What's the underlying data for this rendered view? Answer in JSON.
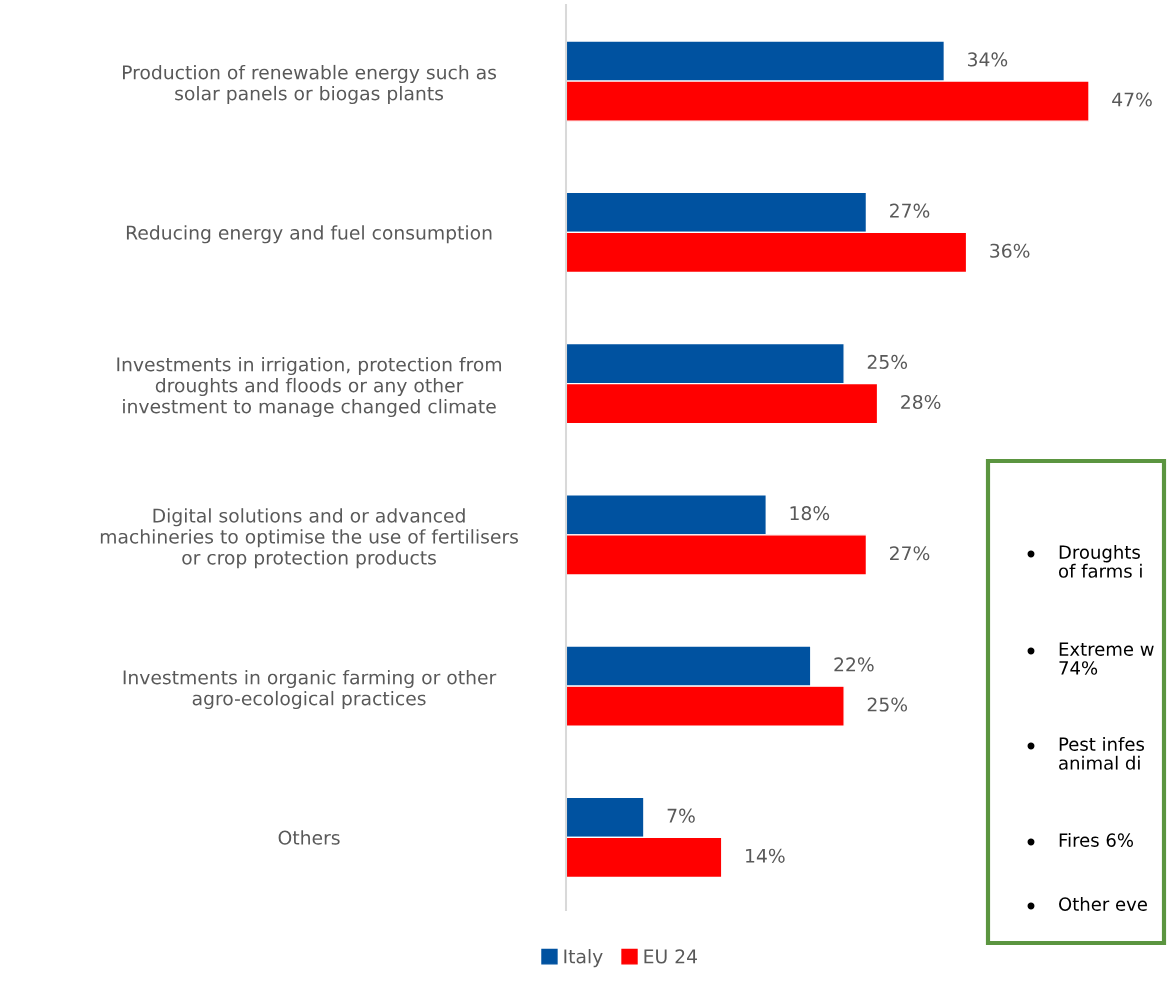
{
  "chart_data": {
    "type": "bar",
    "orientation": "horizontal",
    "categories": [
      "Production of renewable energy such as\nsolar panels or biogas plants",
      "Reducing energy and fuel consumption",
      "Investments in irrigation, protection from\ndroughts and floods or any other\ninvestment to manage changed climate",
      "Digital solutions and or advanced\nmachineries to optimise the use of fertilisers\nor crop protection products",
      "Investments in organic farming or other\nagro-ecological practices",
      "Others"
    ],
    "series": [
      {
        "name": "Italy",
        "color": "#0052a0",
        "values": [
          34,
          27,
          25,
          18,
          22,
          7
        ],
        "value_labels": [
          "34%",
          "27%",
          "25%",
          "18%",
          "22%",
          "7%"
        ]
      },
      {
        "name": "EU 24",
        "color": "#ff0000",
        "values": [
          47,
          36,
          28,
          27,
          25,
          14
        ],
        "value_labels": [
          "47%",
          "36%",
          "28%",
          "27%",
          "25%",
          "14%"
        ]
      }
    ],
    "tick_labels": "y",
    "grid": false,
    "legend": "bottom",
    "annotations": [
      "Droughts\nof farms i",
      "Extreme w\n74%",
      "Pest infes\nanimal di",
      "Fires 6%",
      "Other eve"
    ]
  }
}
